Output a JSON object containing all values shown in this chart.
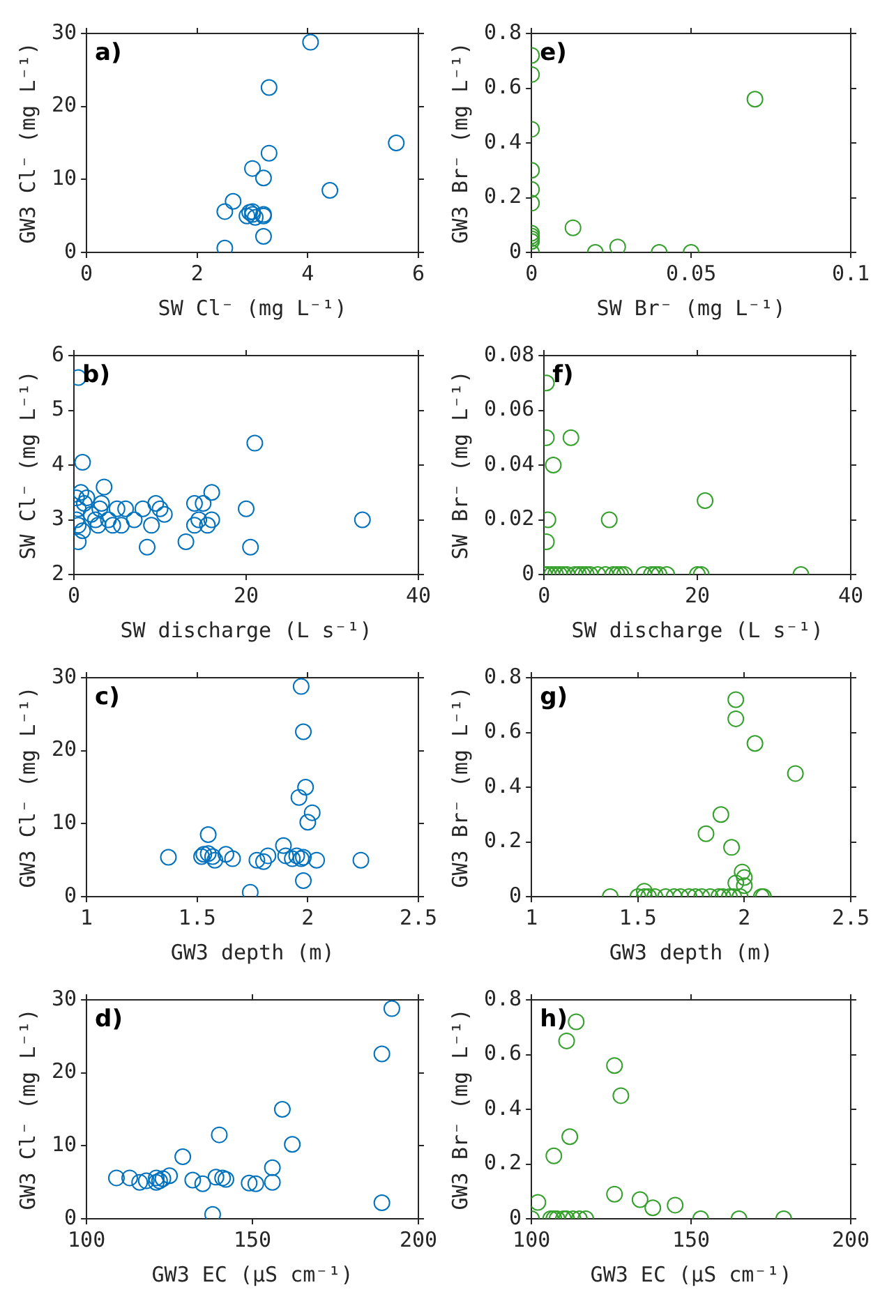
{
  "chart_data": [
    {
      "type": "scatter",
      "xlabel": "SW Cl⁻ (mg L⁻¹)",
      "ylabel": "GW3 Cl⁻ (mg L⁻¹)",
      "annotations": [
        "a)"
      ],
      "xlim": [
        0,
        6
      ],
      "xticks": [
        0,
        2,
        4,
        6
      ],
      "ylim": [
        0,
        30
      ],
      "yticks": [
        0,
        10,
        20,
        30
      ],
      "marker": "circle",
      "series": [
        {
          "color": "#0072bd",
          "x": [
            4.05,
            3.3,
            5.6,
            3.3,
            3.0,
            3.2,
            4.4,
            2.65,
            2.5,
            2.9,
            2.95,
            3.0,
            3.05,
            3.0,
            3.2,
            3.2,
            3.2,
            2.5
          ],
          "values": [
            28.8,
            22.6,
            15,
            13.6,
            11.5,
            10.2,
            8.5,
            7.0,
            5.6,
            5.0,
            5.5,
            5.2,
            4.8,
            5.6,
            5.0,
            5.2,
            2.2,
            0.6
          ]
        }
      ]
    },
    {
      "type": "scatter",
      "xlabel": "SW Br⁻ (mg L⁻¹)",
      "ylabel": "GW3 Br⁻ (mg L⁻¹)",
      "annotations": [
        "e)"
      ],
      "xlim": [
        0,
        0.1
      ],
      "xticks": [
        0,
        0.05,
        0.1
      ],
      "ylim": [
        0,
        0.8
      ],
      "yticks": [
        0,
        0.2,
        0.4,
        0.6,
        0.8
      ],
      "marker": "circle",
      "series": [
        {
          "color": "#35a02c",
          "x": [
            0,
            0,
            0,
            0,
            0,
            0,
            0,
            0,
            0,
            0,
            0,
            0.013,
            0.02,
            0.027,
            0.04,
            0.05,
            0.07
          ],
          "values": [
            0.72,
            0.65,
            0.45,
            0.3,
            0.23,
            0.18,
            0.07,
            0.06,
            0.05,
            0.04,
            0,
            0.09,
            0,
            0.02,
            0,
            0,
            0.56
          ]
        }
      ]
    },
    {
      "type": "scatter",
      "xlabel": "SW discharge (L s⁻¹)",
      "ylabel": "SW Cl⁻ (mg L⁻¹)",
      "annotations": [
        "b)"
      ],
      "xlim": [
        0,
        40
      ],
      "xticks": [
        0,
        20,
        40
      ],
      "ylim": [
        2,
        6
      ],
      "yticks": [
        2,
        3,
        4,
        5,
        6
      ],
      "marker": "circle",
      "series": [
        {
          "color": "#0072bd",
          "x": [
            0.5,
            1,
            21,
            0.3,
            0.8,
            0.5,
            1.2,
            1.5,
            0.3,
            0.5,
            1,
            0.5,
            2,
            2.5,
            3.2,
            3.5,
            3,
            2.8,
            4,
            4.5,
            5,
            5.5,
            6,
            7,
            8,
            8.5,
            9,
            9.5,
            10,
            10.5,
            13,
            14,
            14,
            14.5,
            15,
            15.5,
            16,
            16,
            20,
            20.5,
            33.5
          ],
          "values": [
            5.6,
            4.05,
            4.4,
            3.4,
            3.5,
            3.2,
            3.3,
            3.4,
            3.0,
            2.9,
            2.8,
            2.6,
            3.1,
            3.0,
            3.3,
            3.6,
            3.2,
            2.9,
            3.0,
            2.9,
            3.2,
            2.9,
            3.2,
            3.0,
            3.2,
            2.5,
            2.9,
            3.3,
            3.2,
            3.1,
            2.6,
            2.9,
            3.3,
            3.0,
            3.3,
            2.9,
            3.5,
            3.0,
            3.2,
            2.5,
            3.0
          ]
        }
      ]
    },
    {
      "type": "scatter",
      "xlabel": "SW discharge (L s⁻¹)",
      "ylabel": "SW Br⁻ (mg L⁻¹)",
      "annotations": [
        "f)"
      ],
      "xlim": [
        0,
        40
      ],
      "xticks": [
        0,
        20,
        40
      ],
      "ylim": [
        0,
        0.08
      ],
      "yticks": [
        0,
        0.02,
        0.04,
        0.06,
        0.08
      ],
      "marker": "circle",
      "series": [
        {
          "color": "#35a02c",
          "x": [
            0.3,
            0.3,
            3.5,
            1.2,
            0.5,
            0.3,
            8.5,
            21,
            33.5,
            0,
            0.5,
            1,
            1.5,
            2,
            2.5,
            3,
            4,
            4.5,
            5,
            5.5,
            6,
            7,
            8,
            9,
            9.5,
            10,
            10.5,
            13,
            14,
            14.5,
            15,
            16,
            20,
            20.5
          ],
          "values": [
            0.07,
            0.05,
            0.05,
            0.04,
            0.02,
            0.012,
            0.02,
            0.027,
            0,
            0,
            0,
            0,
            0,
            0,
            0,
            0,
            0,
            0,
            0,
            0,
            0,
            0,
            0,
            0,
            0,
            0,
            0,
            0,
            0,
            0,
            0,
            0,
            0,
            0
          ]
        }
      ]
    },
    {
      "type": "scatter",
      "xlabel": "GW3 depth (m)",
      "ylabel": "GW3 Cl⁻ (mg L⁻¹)",
      "annotations": [
        "c)"
      ],
      "xlim": [
        1,
        2.5
      ],
      "xticks": [
        1,
        1.5,
        2,
        2.5
      ],
      "ylim": [
        0,
        30
      ],
      "yticks": [
        0,
        10,
        20,
        30
      ],
      "marker": "circle",
      "series": [
        {
          "color": "#0072bd",
          "x": [
            1.97,
            1.98,
            1.99,
            1.96,
            2.02,
            2.0,
            1.55,
            1.89,
            1.37,
            1.52,
            1.53,
            1.55,
            1.57,
            1.58,
            1.63,
            1.66,
            1.77,
            1.8,
            1.82,
            1.9,
            1.93,
            1.95,
            1.97,
            1.98,
            2.04,
            2.24,
            1.98,
            1.74
          ],
          "values": [
            28.8,
            22.6,
            15,
            13.6,
            11.5,
            10.2,
            8.5,
            7.0,
            5.4,
            5.5,
            5.8,
            5.9,
            5.5,
            5.0,
            5.8,
            5.2,
            5.0,
            4.8,
            5.6,
            5.6,
            5.2,
            5.6,
            5.2,
            5.4,
            5.0,
            5.0,
            2.2,
            0.6
          ]
        }
      ]
    },
    {
      "type": "scatter",
      "xlabel": "GW3 depth (m)",
      "ylabel": "GW3 Br⁻ (mg L⁻¹)",
      "annotations": [
        "g)"
      ],
      "xlim": [
        1,
        2.5
      ],
      "xticks": [
        1,
        1.5,
        2,
        2.5
      ],
      "ylim": [
        0,
        0.8
      ],
      "yticks": [
        0,
        0.2,
        0.4,
        0.6,
        0.8
      ],
      "marker": "circle",
      "series": [
        {
          "color": "#35a02c",
          "x": [
            1.96,
            1.96,
            2.05,
            2.24,
            1.89,
            1.82,
            1.94,
            1.99,
            2.0,
            1.96,
            2.0,
            1.53,
            1.37,
            1.5,
            1.53,
            1.55,
            1.58,
            1.63,
            1.67,
            1.7,
            1.74,
            1.77,
            1.8,
            1.84,
            1.88,
            1.9,
            1.93,
            1.95,
            1.98,
            2.08,
            2.09
          ],
          "values": [
            0.72,
            0.65,
            0.56,
            0.45,
            0.3,
            0.23,
            0.18,
            0.09,
            0.07,
            0.05,
            0.04,
            0.02,
            0,
            0,
            0,
            0,
            0,
            0,
            0,
            0,
            0,
            0,
            0,
            0,
            0,
            0,
            0,
            0,
            0,
            0,
            0
          ]
        }
      ]
    },
    {
      "type": "scatter",
      "xlabel": "GW3 EC (µS cm⁻¹)",
      "ylabel": "GW3 Cl⁻ (mg L⁻¹)",
      "annotations": [
        "d)"
      ],
      "xlim": [
        100,
        200
      ],
      "xticks": [
        100,
        150,
        200
      ],
      "ylim": [
        0,
        30
      ],
      "yticks": [
        0,
        10,
        20,
        30
      ],
      "marker": "circle",
      "series": [
        {
          "color": "#0072bd",
          "x": [
            192,
            189,
            159,
            140,
            162,
            129,
            156,
            109,
            113,
            116,
            118,
            121,
            121,
            122,
            123,
            125,
            132,
            135,
            139,
            141,
            142,
            149,
            151,
            156,
            138,
            189
          ],
          "values": [
            28.8,
            22.6,
            15,
            11.5,
            10.2,
            8.5,
            7.0,
            5.6,
            5.6,
            5.0,
            5.2,
            5.0,
            5.6,
            5.2,
            5.5,
            5.9,
            5.3,
            4.8,
            5.7,
            5.6,
            5.4,
            4.9,
            4.8,
            5.0,
            0.6,
            2.2
          ]
        }
      ]
    },
    {
      "type": "scatter",
      "xlabel": "GW3 EC (µS cm⁻¹)",
      "ylabel": "GW3 Br⁻ (mg L⁻¹)",
      "annotations": [
        "h)"
      ],
      "xlim": [
        100,
        200
      ],
      "xticks": [
        100,
        150,
        200
      ],
      "ylim": [
        0,
        0.8
      ],
      "yticks": [
        0,
        0.2,
        0.4,
        0.6,
        0.8
      ],
      "marker": "circle",
      "series": [
        {
          "color": "#35a02c",
          "x": [
            114,
            111,
            126,
            128,
            112,
            107,
            126,
            134,
            138,
            145,
            102,
            100,
            106,
            107,
            108,
            110,
            111,
            113,
            115,
            117,
            153,
            165,
            179
          ],
          "values": [
            0.72,
            0.65,
            0.56,
            0.45,
            0.3,
            0.23,
            0.09,
            0.07,
            0.04,
            0.05,
            0.06,
            0,
            0,
            0,
            0,
            0,
            0,
            0,
            0,
            0,
            0,
            0,
            0
          ]
        }
      ]
    }
  ]
}
